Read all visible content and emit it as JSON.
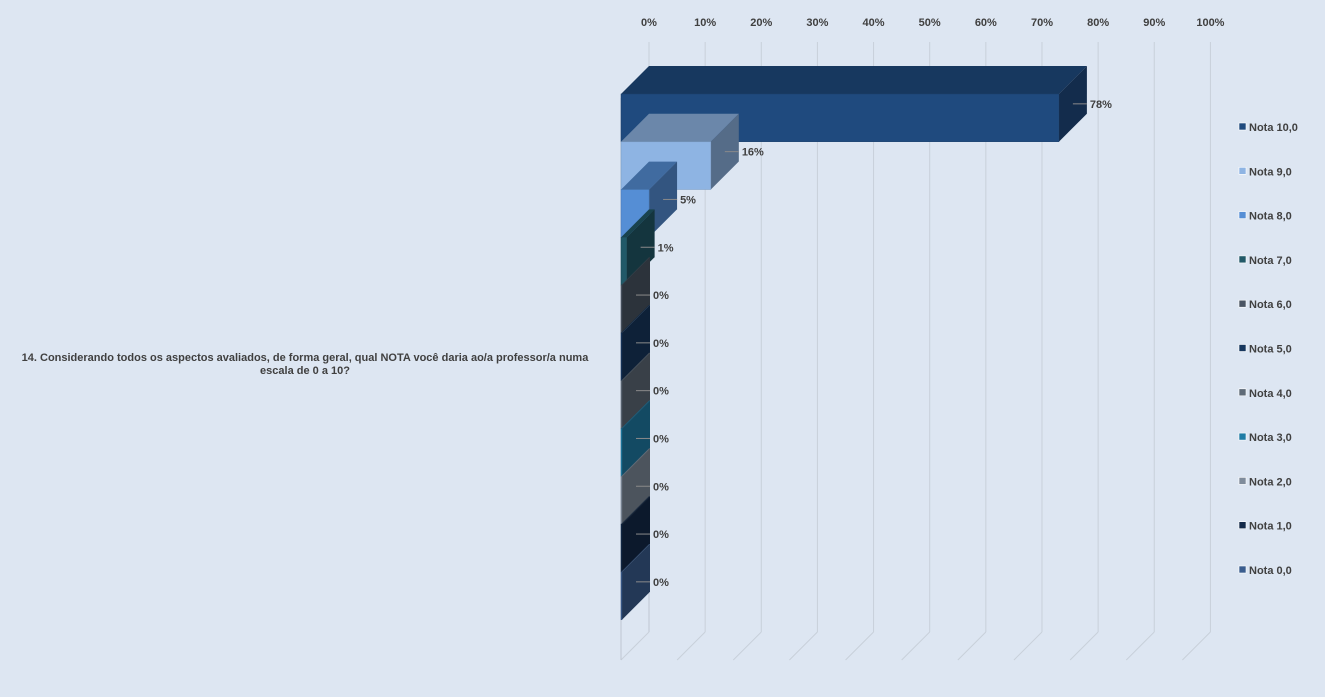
{
  "chart_data": {
    "type": "bar",
    "orientation": "horizontal",
    "category": "14. Considerando todos os aspectos avaliados, de forma geral, qual NOTA você daria ao/a professor/a numa escala de 0 a 10?",
    "xlim": [
      0,
      100
    ],
    "x_ticks": [
      "0%",
      "10%",
      "20%",
      "30%",
      "40%",
      "50%",
      "60%",
      "70%",
      "80%",
      "90%",
      "100%"
    ],
    "grid": true,
    "legend_position": "right",
    "series": [
      {
        "name": "Nota 10,0",
        "value": 78,
        "label": "78%",
        "color": "#1f4a7e"
      },
      {
        "name": "Nota 9,0",
        "value": 16,
        "label": "16%",
        "color": "#8eb4e3"
      },
      {
        "name": "Nota 8,0",
        "value": 5,
        "label": "5%",
        "color": "#558ed5"
      },
      {
        "name": "Nota 7,0",
        "value": 1,
        "label": "1%",
        "color": "#215968"
      },
      {
        "name": "Nota 6,0",
        "value": 0,
        "label": "0%",
        "color": "#4a5563"
      },
      {
        "name": "Nota 5,0",
        "value": 0,
        "label": "0%",
        "color": "#17375e"
      },
      {
        "name": "Nota 4,0",
        "value": 0,
        "label": "0%",
        "color": "#5f6b78"
      },
      {
        "name": "Nota 3,0",
        "value": 0,
        "label": "0%",
        "color": "#1f7ca5"
      },
      {
        "name": "Nota 2,0",
        "value": 0,
        "label": "0%",
        "color": "#7f8c9b"
      },
      {
        "name": "Nota 1,0",
        "value": 0,
        "label": "0%",
        "color": "#142a4a"
      },
      {
        "name": "Nota 0,0",
        "value": 0,
        "label": "0%",
        "color": "#3a5d8f"
      }
    ]
  }
}
